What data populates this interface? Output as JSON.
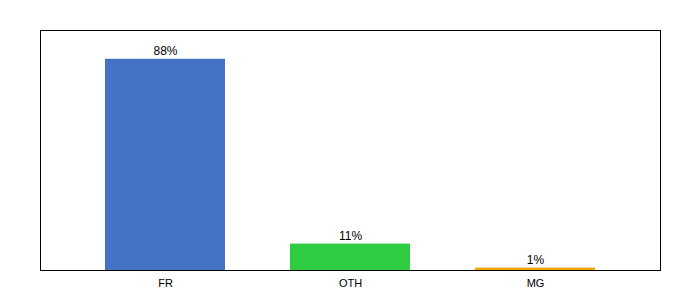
{
  "chart_data": {
    "type": "bar",
    "categories": [
      "FR",
      "OTH",
      "MG"
    ],
    "values": [
      88,
      11,
      1
    ],
    "value_labels": [
      "88%",
      "11%",
      "1%"
    ],
    "colors": [
      "#4472c4",
      "#2ecc40",
      "#f0a500"
    ],
    "ylim": [
      0,
      100
    ],
    "tick_labels": "x",
    "data_labels": true
  }
}
